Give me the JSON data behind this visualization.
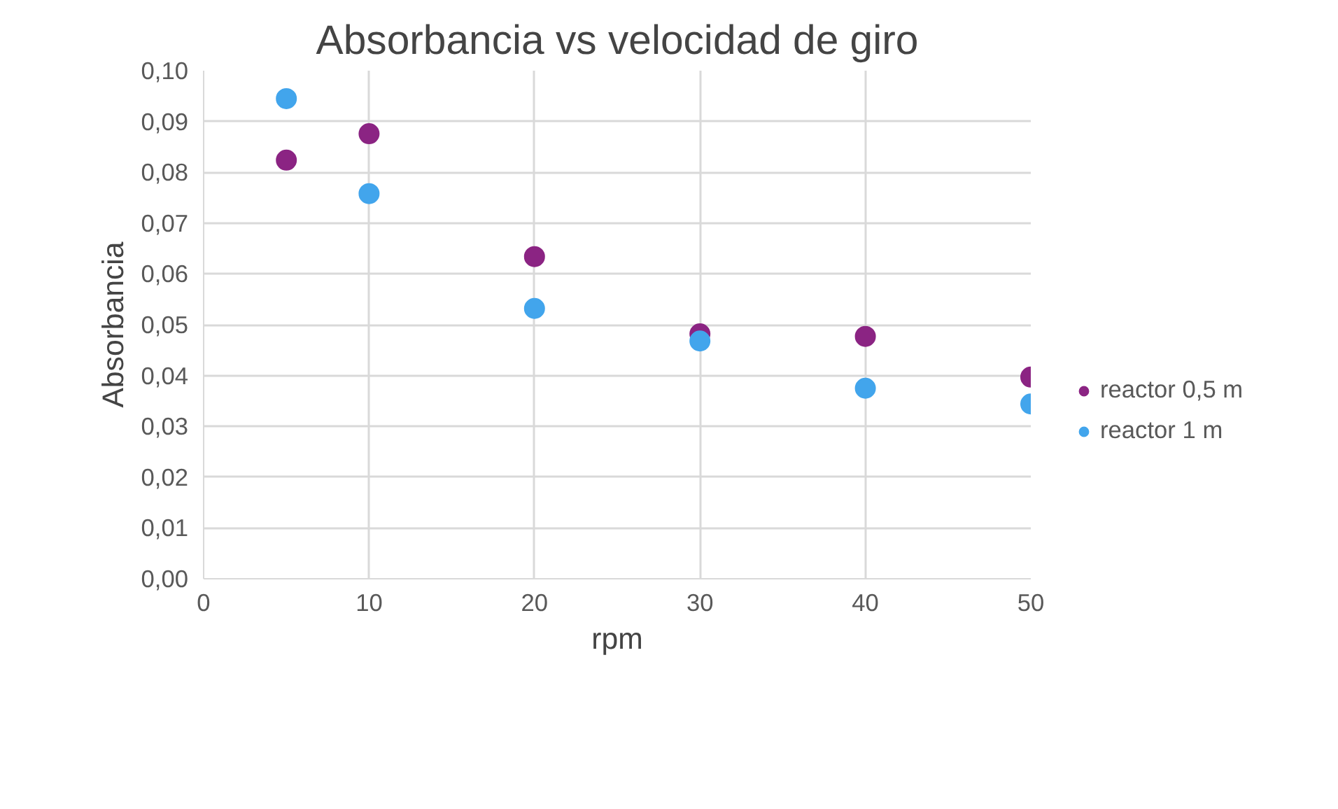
{
  "chart_data": {
    "type": "scatter",
    "title": "Absorbancia vs velocidad de giro",
    "xlabel": "rpm",
    "ylabel": "Absorbancia",
    "x": [
      5,
      10,
      20,
      30,
      40,
      50
    ],
    "series": [
      {
        "name": "reactor 0,5 m",
        "color": "#8b2483",
        "values": [
          0.0824,
          0.0876,
          0.0634,
          0.0482,
          0.0477,
          0.0397
        ]
      },
      {
        "name": "reactor 1 m",
        "color": "#42a5ec",
        "values": [
          0.0945,
          0.0758,
          0.0532,
          0.0468,
          0.0375,
          0.0344
        ]
      }
    ],
    "xlim": [
      0,
      50
    ],
    "xticks": [
      0,
      10,
      20,
      30,
      40,
      50
    ],
    "ylim": [
      0,
      0.1
    ],
    "yticks": [
      {
        "value": 0,
        "label": "0,00"
      },
      {
        "value": 0.01,
        "label": "0,01"
      },
      {
        "value": 0.02,
        "label": "0,02"
      },
      {
        "value": 0.03,
        "label": "0,03"
      },
      {
        "value": 0.04,
        "label": "0,04"
      },
      {
        "value": 0.05,
        "label": "0,05"
      },
      {
        "value": 0.06,
        "label": "0,06"
      },
      {
        "value": 0.07,
        "label": "0,07"
      },
      {
        "value": 0.08,
        "label": "0,08"
      },
      {
        "value": 0.09,
        "label": "0,09"
      },
      {
        "value": 0.1,
        "label": "0,10"
      }
    ],
    "grid": true,
    "legend": "right",
    "marker": "circle"
  }
}
